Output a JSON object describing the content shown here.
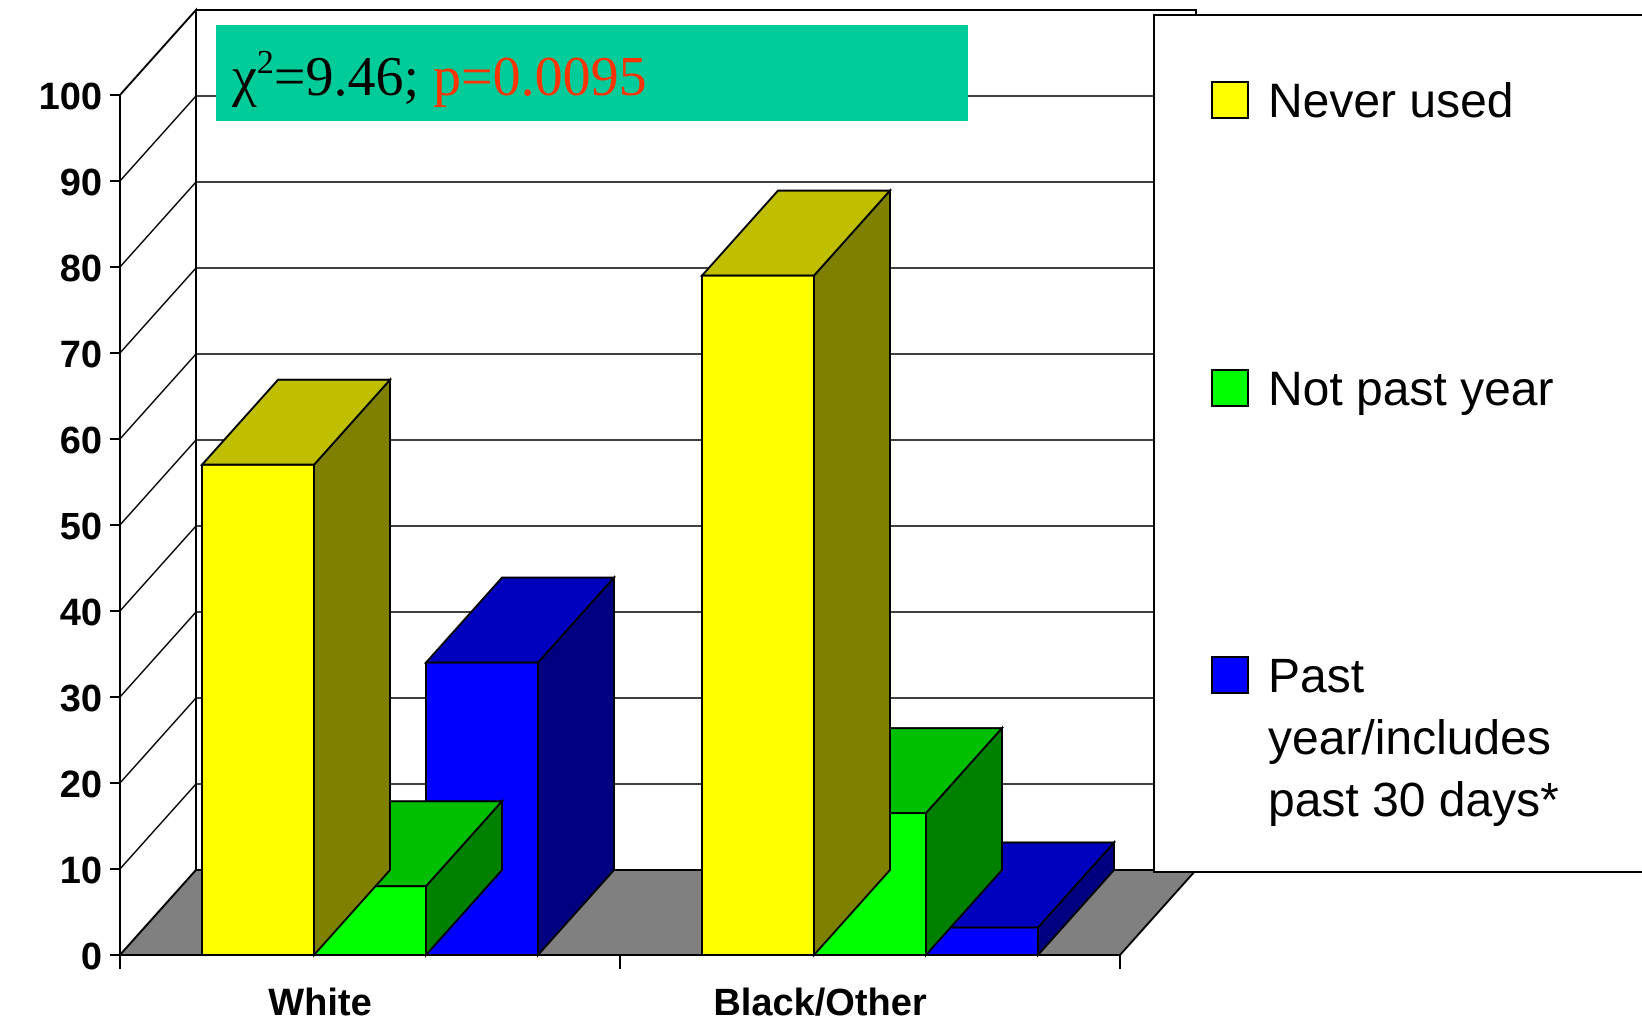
{
  "chart_data": {
    "type": "bar",
    "style": "3d-clustered",
    "categories": [
      "White",
      "Black/Other"
    ],
    "series": [
      {
        "name": "Never used",
        "values": [
          57,
          79
        ],
        "color": "#ffff00"
      },
      {
        "name": "Not past year",
        "values": [
          8,
          16.5
        ],
        "color": "#00ff00"
      },
      {
        "name": "Past year/includes past 30 days*",
        "values": [
          34,
          3.2
        ],
        "color": "#0000ff"
      }
    ],
    "y_ticks": [
      "0",
      "10",
      "20",
      "30",
      "40",
      "50",
      "60",
      "70",
      "80",
      "90",
      "100"
    ],
    "ylim": [
      0,
      100
    ],
    "grid": true,
    "legend_position": "right",
    "legend_lines": [
      [
        "Never used"
      ],
      [
        "Not past year"
      ],
      [
        "Past",
        "year/includes",
        "past 30 days*"
      ]
    ],
    "annotation": {
      "chi_symbol": "χ",
      "chi_superscript": "2",
      "chi_value": "=9.46;",
      "p_text": "p=0.0095",
      "box_color": "#00cc99",
      "p_color": "#ff3300"
    }
  }
}
